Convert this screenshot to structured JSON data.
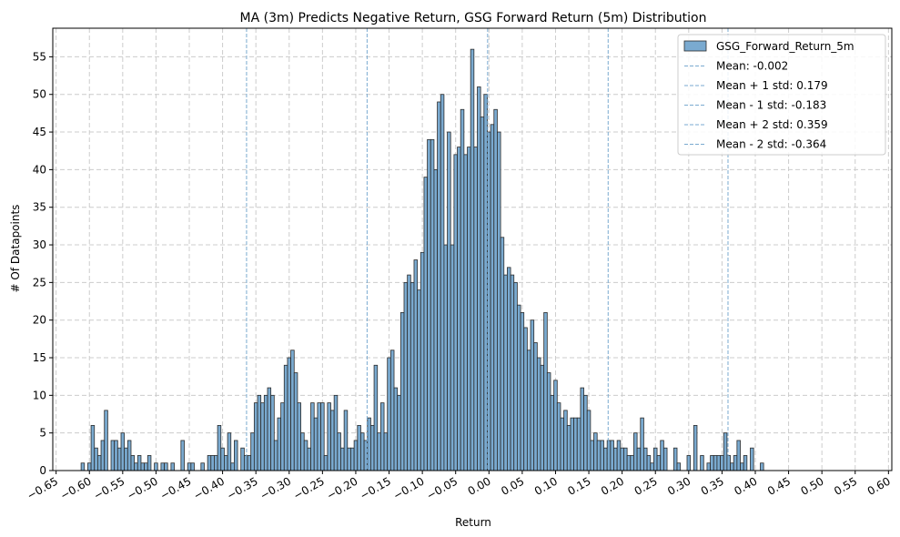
{
  "chart_data": {
    "type": "histogram",
    "title": "MA (3m) Predicts Negative Return, GSG Forward Return (5m) Distribution",
    "xlabel": "Return",
    "ylabel": "# Of Datapoints",
    "xlim": [
      -0.655,
      0.605
    ],
    "ylim": [
      0,
      58.8
    ],
    "x_ticks": [
      -0.65,
      -0.6,
      -0.55,
      -0.5,
      -0.45,
      -0.4,
      -0.35,
      -0.3,
      -0.25,
      -0.2,
      -0.15,
      -0.1,
      -0.05,
      0.0,
      0.05,
      0.1,
      0.15,
      0.2,
      0.25,
      0.3,
      0.35,
      0.4,
      0.45,
      0.5,
      0.55,
      0.6
    ],
    "x_tick_labels": [
      "−0.65",
      "−0.60",
      "−0.55",
      "−0.50",
      "−0.45",
      "−0.40",
      "−0.35",
      "−0.30",
      "−0.25",
      "−0.20",
      "−0.15",
      "−0.10",
      "−0.05",
      "0.00",
      "0.05",
      "0.10",
      "0.15",
      "0.20",
      "0.25",
      "0.30",
      "0.35",
      "0.40",
      "0.45",
      "0.50",
      "0.55",
      "0.60"
    ],
    "y_ticks": [
      0,
      5,
      10,
      15,
      20,
      25,
      30,
      35,
      40,
      45,
      50,
      55
    ],
    "y_tick_labels": [
      "0",
      "5",
      "10",
      "15",
      "20",
      "25",
      "30",
      "35",
      "40",
      "45",
      "50",
      "55"
    ],
    "grid": true,
    "legend_position": "top-right",
    "bin_start": -0.6125,
    "bin_width": 0.005,
    "series": [
      {
        "name": "GSG_Forward_Return_5m",
        "color": "#7aaad0",
        "edge_color": "#000000",
        "values": [
          1,
          0,
          1,
          6,
          3,
          2,
          4,
          8,
          0,
          4,
          4,
          3,
          5,
          3,
          4,
          2,
          1,
          2,
          1,
          1,
          2,
          0,
          1,
          0,
          1,
          1,
          0,
          1,
          0,
          0,
          4,
          0,
          1,
          1,
          0,
          0,
          1,
          0,
          2,
          2,
          2,
          6,
          3,
          2,
          5,
          1,
          4,
          0,
          3,
          2,
          2,
          5,
          9,
          10,
          9,
          10,
          11,
          10,
          4,
          7,
          9,
          14,
          15,
          16,
          13,
          9,
          5,
          4,
          3,
          9,
          7,
          9,
          9,
          2,
          9,
          8,
          10,
          5,
          3,
          8,
          3,
          3,
          4,
          6,
          5,
          4,
          7,
          6,
          14,
          5,
          9,
          5,
          15,
          16,
          11,
          10,
          21,
          25,
          26,
          25,
          28,
          24,
          29,
          39,
          44,
          44,
          40,
          49,
          50,
          30,
          45,
          30,
          42,
          43,
          48,
          42,
          43,
          56,
          43,
          51,
          47,
          50,
          45,
          46,
          48,
          45,
          31,
          26,
          27,
          26,
          25,
          22,
          21,
          19,
          16,
          20,
          17,
          15,
          14,
          21,
          13,
          10,
          12,
          9,
          7,
          8,
          6,
          7,
          7,
          7,
          11,
          10,
          8,
          4,
          5,
          4,
          4,
          3,
          4,
          4,
          3,
          4,
          3,
          3,
          2,
          2,
          5,
          3,
          7,
          3,
          2,
          1,
          3,
          2,
          4,
          3,
          0,
          0,
          3,
          1,
          0,
          0,
          2,
          0,
          6,
          0,
          2,
          0,
          1,
          2,
          2,
          2,
          2,
          5,
          2,
          1,
          2,
          4,
          1,
          2,
          0,
          3,
          0,
          0,
          1
        ],
        "line_widths_note": ""
      }
    ],
    "reference_lines": [
      {
        "label": "Mean: -0.002",
        "x": -0.002
      },
      {
        "label": "Mean + 1 std: 0.179",
        "x": 0.179
      },
      {
        "label": "Mean - 1 std: -0.183",
        "x": -0.183
      },
      {
        "label": "Mean + 2 std: 0.359",
        "x": 0.359
      },
      {
        "label": "Mean - 2 std: -0.364",
        "x": -0.364
      }
    ],
    "reference_line_color": "#7aaad0"
  }
}
